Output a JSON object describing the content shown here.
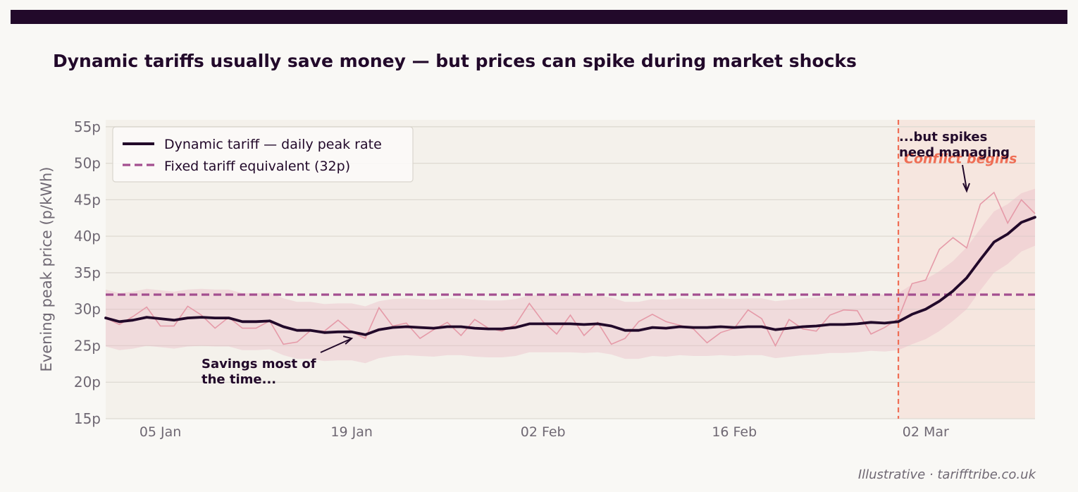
{
  "header": {
    "title": "Dynamic tariffs usually save money — but prices can spike during market shocks"
  },
  "footer": {
    "source": "Illustrative  ·  tarifftribe.co.uk"
  },
  "colors": {
    "band_bg": "#22092a",
    "page_bg": "#f9f8f5",
    "plot_bg": "#f4f1eb",
    "shock_bg": "#f6e6df",
    "dynamic_line": "#22092a",
    "raw_line": "#e59aa8",
    "ci_band": "#eab8c4",
    "fixed_line": "#a34e8f",
    "shock_line": "#ef6e55",
    "grid": "#dedad2",
    "tick_text": "#6f6873"
  },
  "chart_data": {
    "type": "line",
    "title": "Dynamic tariffs usually save money — but prices can spike during market shocks",
    "xlabel": "",
    "ylabel": "Evening peak price (p/kWh)",
    "ylim": [
      15,
      55
    ],
    "y_ticks": [
      15,
      20,
      25,
      30,
      35,
      40,
      45,
      50,
      55
    ],
    "y_tick_labels": [
      "15p",
      "20p",
      "25p",
      "30p",
      "35p",
      "40p",
      "45p",
      "50p",
      "55p"
    ],
    "x_range": [
      "2025-01-01",
      "2025-03-10"
    ],
    "x_ticks": [
      "2025-01-05",
      "2025-01-19",
      "2025-02-02",
      "2025-02-16",
      "2025-03-02"
    ],
    "x_tick_labels": [
      "05 Jan",
      "19 Jan",
      "02 Feb",
      "16 Feb",
      "02 Mar"
    ],
    "grid": "horizontal",
    "legend_position": "top-left",
    "legend": [
      {
        "label": "Dynamic tariff — daily peak rate",
        "style": "solid"
      },
      {
        "label": "Fixed tariff equivalent (32p)",
        "style": "dashed"
      }
    ],
    "dates": [
      "2025-01-01",
      "2025-01-02",
      "2025-01-03",
      "2025-01-04",
      "2025-01-05",
      "2025-01-06",
      "2025-01-07",
      "2025-01-08",
      "2025-01-09",
      "2025-01-10",
      "2025-01-11",
      "2025-01-12",
      "2025-01-13",
      "2025-01-14",
      "2025-01-15",
      "2025-01-16",
      "2025-01-17",
      "2025-01-18",
      "2025-01-19",
      "2025-01-20",
      "2025-01-21",
      "2025-01-22",
      "2025-01-23",
      "2025-01-24",
      "2025-01-25",
      "2025-01-26",
      "2025-01-27",
      "2025-01-28",
      "2025-01-29",
      "2025-01-30",
      "2025-01-31",
      "2025-02-01",
      "2025-02-02",
      "2025-02-03",
      "2025-02-04",
      "2025-02-05",
      "2025-02-06",
      "2025-02-07",
      "2025-02-08",
      "2025-02-09",
      "2025-02-10",
      "2025-02-11",
      "2025-02-12",
      "2025-02-13",
      "2025-02-14",
      "2025-02-15",
      "2025-02-16",
      "2025-02-17",
      "2025-02-18",
      "2025-02-19",
      "2025-02-20",
      "2025-02-21",
      "2025-02-22",
      "2025-02-23",
      "2025-02-24",
      "2025-02-25",
      "2025-02-26",
      "2025-02-27",
      "2025-02-28",
      "2025-03-01",
      "2025-03-02",
      "2025-03-03",
      "2025-03-04",
      "2025-03-05",
      "2025-03-06",
      "2025-03-07",
      "2025-03-08",
      "2025-03-09",
      "2025-03-10"
    ],
    "series": [
      {
        "name": "Dynamic tariff — daily peak rate",
        "kind": "smoothed",
        "values": [
          28.8,
          28.3,
          28.5,
          28.9,
          28.7,
          28.5,
          28.8,
          28.9,
          28.8,
          28.8,
          28.3,
          28.3,
          28.4,
          27.6,
          27.1,
          27.1,
          26.8,
          26.9,
          26.9,
          26.5,
          27.2,
          27.5,
          27.6,
          27.5,
          27.4,
          27.6,
          27.6,
          27.4,
          27.3,
          27.3,
          27.5,
          28.0,
          28.0,
          28.0,
          28.0,
          27.9,
          28.0,
          27.7,
          27.1,
          27.1,
          27.5,
          27.4,
          27.6,
          27.5,
          27.5,
          27.6,
          27.5,
          27.6,
          27.6,
          27.2,
          27.4,
          27.6,
          27.7,
          27.9,
          27.9,
          28.0,
          28.2,
          28.1,
          28.3,
          29.3,
          30.0,
          31.1,
          32.5,
          34.3,
          36.8,
          39.2,
          40.3,
          41.9,
          42.6
        ]
      },
      {
        "name": "",
        "kind": "raw",
        "values": [
          28.8,
          27.9,
          29.0,
          30.3,
          27.7,
          27.7,
          30.4,
          29.2,
          27.4,
          28.9,
          27.4,
          27.4,
          28.4,
          25.2,
          25.5,
          27.1,
          27.0,
          28.5,
          26.9,
          26.0,
          30.2,
          27.7,
          28.1,
          26.0,
          27.2,
          28.2,
          26.4,
          28.6,
          27.4,
          27.0,
          27.9,
          30.8,
          28.3,
          26.6,
          29.2,
          26.4,
          28.2,
          25.2,
          26.0,
          28.3,
          29.3,
          28.3,
          27.8,
          27.3,
          25.4,
          26.8,
          27.4,
          29.9,
          28.7,
          25.0,
          28.6,
          27.3,
          27.0,
          29.2,
          29.9,
          29.8,
          26.6,
          27.5,
          28.7,
          33.5,
          34.0,
          38.2,
          39.8,
          38.4,
          44.4,
          46.0,
          41.8,
          45.0,
          43.1
        ]
      },
      {
        "name": "",
        "kind": "band",
        "lower": [
          24.9,
          24.4,
          24.6,
          25.0,
          24.8,
          24.6,
          24.9,
          25.0,
          24.9,
          24.9,
          24.4,
          24.4,
          24.5,
          23.7,
          23.2,
          23.2,
          22.9,
          23.0,
          23.0,
          22.6,
          23.3,
          23.6,
          23.7,
          23.6,
          23.5,
          23.7,
          23.7,
          23.5,
          23.4,
          23.4,
          23.6,
          24.1,
          24.1,
          24.1,
          24.1,
          24.0,
          24.1,
          23.8,
          23.2,
          23.2,
          23.6,
          23.5,
          23.7,
          23.6,
          23.6,
          23.7,
          23.6,
          23.7,
          23.7,
          23.3,
          23.5,
          23.7,
          23.8,
          24.0,
          24.0,
          24.1,
          24.3,
          24.2,
          24.4,
          25.2,
          25.9,
          27.0,
          28.4,
          30.0,
          32.6,
          35.0,
          36.2,
          37.9,
          38.7
        ],
        "upper": [
          32.7,
          32.2,
          32.4,
          32.8,
          32.6,
          32.4,
          32.7,
          32.8,
          32.7,
          32.7,
          32.2,
          32.2,
          32.3,
          31.5,
          31.0,
          31.0,
          30.7,
          30.8,
          30.8,
          30.4,
          31.1,
          31.4,
          31.5,
          31.4,
          31.3,
          31.5,
          31.5,
          31.3,
          31.2,
          31.2,
          31.4,
          31.9,
          31.9,
          31.9,
          31.9,
          31.8,
          31.9,
          31.6,
          31.0,
          31.0,
          31.4,
          31.3,
          31.5,
          31.4,
          31.4,
          31.5,
          31.4,
          31.5,
          31.5,
          31.1,
          31.3,
          31.5,
          31.6,
          31.8,
          31.8,
          31.9,
          32.1,
          32.0,
          32.2,
          33.4,
          34.1,
          35.2,
          36.6,
          38.5,
          41.0,
          43.4,
          44.4,
          45.9,
          46.5
        ]
      },
      {
        "name": "Fixed tariff equivalent (32p)",
        "kind": "constant",
        "value": 32
      }
    ],
    "shock_start": "2025-02-28",
    "annotations": [
      {
        "text": "Conflict begins",
        "x": "2025-02-28",
        "y": 50.7
      },
      {
        "text": "...but spikes\nneed managing",
        "x": "2025-02-28",
        "y": 52.5,
        "arrow_to": {
          "x": "2025-03-05",
          "y": 46.2
        }
      },
      {
        "text": "Savings most of\nthe time...",
        "x": "2025-01-08",
        "y": 20.5,
        "arrow_to": {
          "x": "2025-01-19",
          "y": 26.0
        }
      }
    ]
  }
}
